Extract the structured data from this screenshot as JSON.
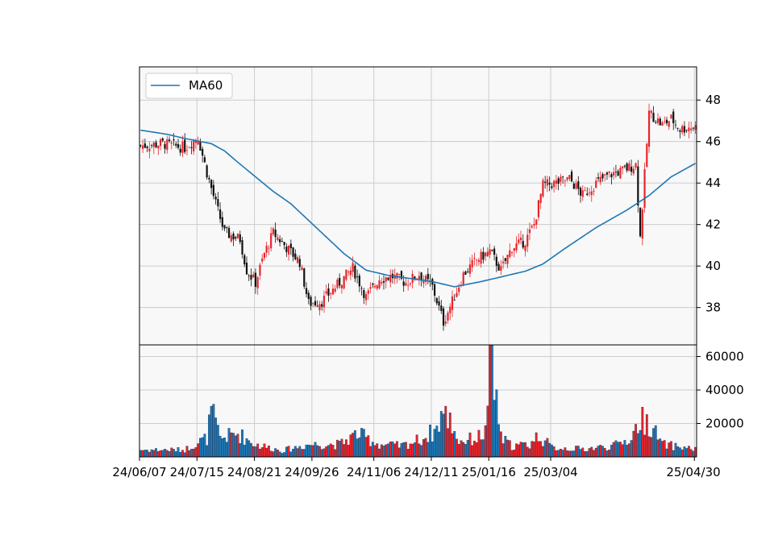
{
  "chart_data": [
    {
      "type": "candlestick",
      "panel": "price",
      "legend": {
        "placement": "top-left",
        "entries": [
          "MA60"
        ]
      },
      "grid": true,
      "ylim": [
        36.2,
        49.6
      ],
      "y_ticks": [
        "38",
        "40",
        "42",
        "44",
        "46",
        "48"
      ],
      "x_ticks": [
        "24/06/07",
        "24/07/15",
        "24/08/21",
        "24/09/26",
        "24/11/06",
        "24/12/11",
        "25/01/16",
        "25/03/04",
        "25/04/30"
      ],
      "colors": {
        "up": "#e8242a",
        "down": "#111111",
        "ma": "#1f77b4"
      },
      "ohlc_anchors": [
        {
          "x": 0,
          "close": 45.8
        },
        {
          "x": 10,
          "close": 45.9
        },
        {
          "x": 20,
          "close": 45.7
        },
        {
          "x": 26,
          "close": 46.2
        },
        {
          "x": 30,
          "close": 44.5
        },
        {
          "x": 34,
          "close": 43.0
        },
        {
          "x": 38,
          "close": 41.6
        },
        {
          "x": 45,
          "close": 41.3
        },
        {
          "x": 48,
          "close": 39.8
        },
        {
          "x": 52,
          "close": 39.2
        },
        {
          "x": 56,
          "close": 40.6
        },
        {
          "x": 60,
          "close": 41.6
        },
        {
          "x": 66,
          "close": 40.9
        },
        {
          "x": 72,
          "close": 40.2
        },
        {
          "x": 76,
          "close": 38.2
        },
        {
          "x": 82,
          "close": 38.3
        },
        {
          "x": 90,
          "close": 39.2
        },
        {
          "x": 96,
          "close": 39.9
        },
        {
          "x": 102,
          "close": 38.5
        },
        {
          "x": 108,
          "close": 39.4
        },
        {
          "x": 114,
          "close": 39.5
        },
        {
          "x": 120,
          "close": 39.2
        },
        {
          "x": 126,
          "close": 39.6
        },
        {
          "x": 132,
          "close": 39.0
        },
        {
          "x": 137,
          "close": 37.3
        },
        {
          "x": 141,
          "close": 38.3
        },
        {
          "x": 146,
          "close": 39.6
        },
        {
          "x": 152,
          "close": 40.3
        },
        {
          "x": 158,
          "close": 40.7
        },
        {
          "x": 163,
          "close": 39.8
        },
        {
          "x": 168,
          "close": 40.9
        },
        {
          "x": 174,
          "close": 41.2
        },
        {
          "x": 178,
          "close": 42.0
        },
        {
          "x": 182,
          "close": 43.9
        },
        {
          "x": 188,
          "close": 44.0
        },
        {
          "x": 194,
          "close": 44.2
        },
        {
          "x": 200,
          "close": 43.4
        },
        {
          "x": 206,
          "close": 44.0
        },
        {
          "x": 212,
          "close": 44.4
        },
        {
          "x": 218,
          "close": 44.6
        },
        {
          "x": 224,
          "close": 44.9
        },
        {
          "x": 226,
          "close": 41.4
        },
        {
          "x": 230,
          "close": 47.4
        },
        {
          "x": 236,
          "close": 46.8
        },
        {
          "x": 240,
          "close": 47.1
        },
        {
          "x": 244,
          "close": 46.6
        },
        {
          "x": 248,
          "close": 46.7
        },
        {
          "x": 251,
          "close": 46.7
        }
      ],
      "ma60_anchors": [
        {
          "x": 0,
          "y": 46.55
        },
        {
          "x": 12,
          "y": 46.35
        },
        {
          "x": 20,
          "y": 46.15
        },
        {
          "x": 32,
          "y": 45.9
        },
        {
          "x": 38,
          "y": 45.55
        },
        {
          "x": 44,
          "y": 45.0
        },
        {
          "x": 52,
          "y": 44.3
        },
        {
          "x": 60,
          "y": 43.6
        },
        {
          "x": 68,
          "y": 43.0
        },
        {
          "x": 80,
          "y": 41.8
        },
        {
          "x": 92,
          "y": 40.6
        },
        {
          "x": 102,
          "y": 39.8
        },
        {
          "x": 112,
          "y": 39.55
        },
        {
          "x": 122,
          "y": 39.4
        },
        {
          "x": 132,
          "y": 39.25
        },
        {
          "x": 142,
          "y": 39.0
        },
        {
          "x": 154,
          "y": 39.25
        },
        {
          "x": 164,
          "y": 39.5
        },
        {
          "x": 174,
          "y": 39.75
        },
        {
          "x": 182,
          "y": 40.1
        },
        {
          "x": 192,
          "y": 40.85
        },
        {
          "x": 206,
          "y": 41.85
        },
        {
          "x": 220,
          "y": 42.7
        },
        {
          "x": 230,
          "y": 43.4
        },
        {
          "x": 240,
          "y": 44.3
        },
        {
          "x": 251,
          "y": 44.95
        }
      ],
      "n_bars": 252
    },
    {
      "type": "bar",
      "panel": "volume",
      "grid": true,
      "ylim": [
        0,
        67000
      ],
      "y_ticks": [
        "20000",
        "40000",
        "60000"
      ],
      "colors": {
        "up": "#e8242a",
        "down": "#1f77b4"
      },
      "volume_anchors": [
        {
          "x": 0,
          "v": 4500
        },
        {
          "x": 20,
          "v": 4500
        },
        {
          "x": 24,
          "v": 8000
        },
        {
          "x": 30,
          "v": 12000
        },
        {
          "x": 32,
          "v": 29000
        },
        {
          "x": 36,
          "v": 12000
        },
        {
          "x": 44,
          "v": 15000
        },
        {
          "x": 52,
          "v": 8000
        },
        {
          "x": 64,
          "v": 4000
        },
        {
          "x": 76,
          "v": 8000
        },
        {
          "x": 90,
          "v": 8000
        },
        {
          "x": 98,
          "v": 15000
        },
        {
          "x": 108,
          "v": 8000
        },
        {
          "x": 118,
          "v": 7000
        },
        {
          "x": 128,
          "v": 12000
        },
        {
          "x": 134,
          "v": 18000
        },
        {
          "x": 136,
          "v": 28000
        },
        {
          "x": 140,
          "v": 24000
        },
        {
          "x": 144,
          "v": 10000
        },
        {
          "x": 152,
          "v": 12000
        },
        {
          "x": 156,
          "v": 16000
        },
        {
          "x": 158,
          "v": 66000
        },
        {
          "x": 159,
          "v": 54000
        },
        {
          "x": 160,
          "v": 38000
        },
        {
          "x": 161,
          "v": 40000
        },
        {
          "x": 163,
          "v": 12000
        },
        {
          "x": 168,
          "v": 7000
        },
        {
          "x": 176,
          "v": 8000
        },
        {
          "x": 180,
          "v": 14000
        },
        {
          "x": 186,
          "v": 6000
        },
        {
          "x": 200,
          "v": 5000
        },
        {
          "x": 214,
          "v": 7000
        },
        {
          "x": 222,
          "v": 12000
        },
        {
          "x": 226,
          "v": 24000
        },
        {
          "x": 230,
          "v": 22000
        },
        {
          "x": 236,
          "v": 8000
        },
        {
          "x": 251,
          "v": 5000
        }
      ]
    }
  ]
}
